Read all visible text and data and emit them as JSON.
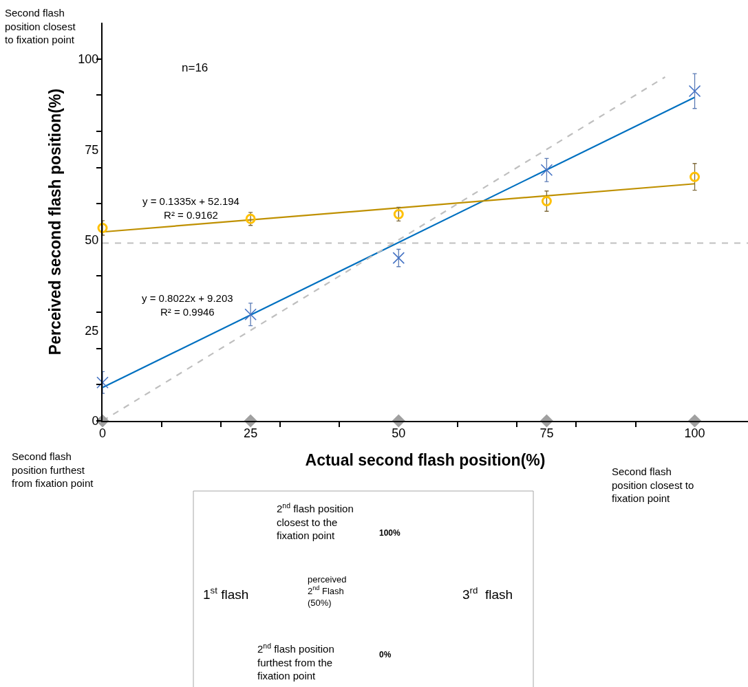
{
  "chart_data": {
    "type": "scatter",
    "xlabel": "Actual second flash position(%)",
    "ylabel": "Perceived second flash position(%)",
    "x": [
      0,
      25,
      50,
      75,
      100
    ],
    "xlim": [
      0,
      109
    ],
    "ylim": [
      0,
      110
    ],
    "xticks": [
      0,
      {
        "value": 10,
        "label": null
      },
      {
        "value": 20,
        "label": null
      },
      25,
      {
        "value": 30,
        "label": null
      },
      {
        "value": 40,
        "label": null
      },
      50,
      {
        "value": 60,
        "label": null
      },
      {
        "value": 70,
        "label": null
      },
      75,
      {
        "value": 80,
        "label": null
      },
      {
        "value": 90,
        "label": null
      },
      100
    ],
    "yticks": [
      0,
      {
        "value": 10,
        "label": null
      },
      {
        "value": 20,
        "label": null
      },
      25,
      {
        "value": 30,
        "label": null
      },
      {
        "value": 40,
        "label": null
      },
      50,
      {
        "value": 60,
        "label": null
      },
      {
        "value": 70,
        "label": null
      },
      75,
      {
        "value": 80,
        "label": null
      },
      {
        "value": 90,
        "label": null
      },
      100
    ],
    "series": [
      {
        "type": "line",
        "color": "#0070c0",
        "x": [
          0,
          100
        ],
        "values": [
          9.2,
          89.4
        ],
        "marker": "none",
        "line_style": "solid"
      },
      {
        "type": "line",
        "color": "#bf9000",
        "x": [
          0,
          100
        ],
        "values": [
          52.2,
          65.5
        ],
        "marker": "none",
        "line_style": "solid"
      },
      {
        "type": "line",
        "color": "#bfbfbf",
        "x": [
          0,
          95
        ],
        "values": [
          0,
          95
        ],
        "marker": "none",
        "line_style": "dashed"
      },
      {
        "color": "#4472c4",
        "marker": "cross",
        "values": [
          10.6,
          29.4,
          45.0,
          69.3,
          91.1
        ],
        "errors": [
          3.0,
          3.1,
          2.4,
          3.2,
          4.8
        ]
      },
      {
        "color": "#ffc000",
        "marker": "circle",
        "values": [
          53.3,
          55.8,
          57.1,
          60.7,
          67.4
        ],
        "errors": [
          2.0,
          1.8,
          1.9,
          2.8,
          3.7
        ]
      },
      {
        "color": "#a0a0a0",
        "marker": "diamond",
        "values": [
          0,
          0,
          0,
          0,
          0
        ]
      }
    ],
    "ref_lines": [
      {
        "axis": "y",
        "value": 49.1,
        "color": "#bfbfbf",
        "line_style": "dashed"
      }
    ],
    "annotations": [
      "y = 0.1335x + 52.194\nR² = 0.9162",
      "y = 0.8022x + 9.203\nR² = 0.9946",
      "n=16",
      "Second flash\nposition closest\nto fixation point",
      "Second flash\nposition furthest\nfrom fixation point",
      "Second flash\nposition closest to\nfixation point",
      "2$^{nd}$ flash position\nclosest to the\nfixation point",
      "100%",
      "perceived\n2$^{nd}$ Flash\n(50%)",
      "1$^{st}$ flash",
      "3$^{rd}$  flash",
      "2$^{nd}$ flash position\nfurthest from the\nfixation point",
      "0%"
    ]
  }
}
